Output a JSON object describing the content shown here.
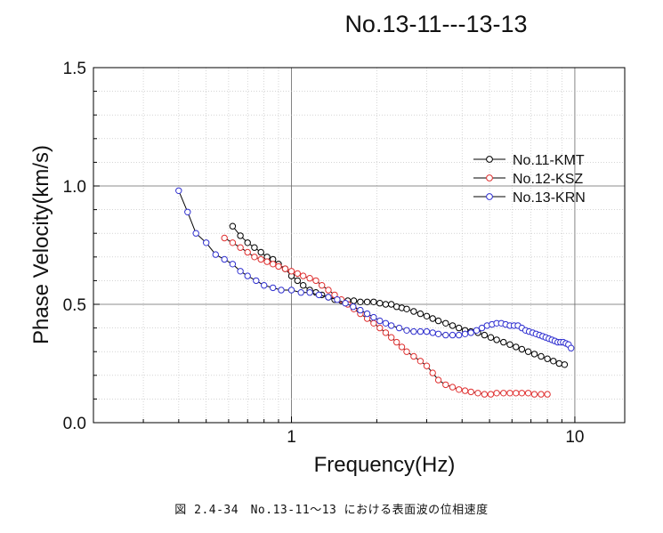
{
  "caption": "図 2.4-34　No.13-11～13 における表面波の位相速度",
  "chart_data": {
    "type": "scatter",
    "title": "No.13-11---13-13",
    "xlabel": "Frequency(Hz)",
    "ylabel": "Phase Velocity(km/s)",
    "xscale": "log",
    "xlim": [
      0.2,
      15
    ],
    "ylim": [
      0.0,
      1.5
    ],
    "x_ticks": [
      1,
      10
    ],
    "x_tick_labels": [
      "1",
      "10"
    ],
    "y_ticks": [
      0.0,
      0.5,
      1.0,
      1.5
    ],
    "y_tick_labels": [
      "0.0",
      "0.5",
      "1.0",
      "1.5"
    ],
    "grid": true,
    "legend_position": "top-right",
    "series": [
      {
        "name": "No.11-KMT",
        "color": "#000000",
        "x": [
          0.62,
          0.66,
          0.7,
          0.74,
          0.78,
          0.82,
          0.86,
          0.9,
          0.95,
          1.0,
          1.05,
          1.1,
          1.16,
          1.22,
          1.28,
          1.35,
          1.42,
          1.5,
          1.58,
          1.66,
          1.75,
          1.85,
          1.95,
          2.05,
          2.15,
          2.25,
          2.35,
          2.45,
          2.55,
          2.7,
          2.85,
          3.0,
          3.15,
          3.3,
          3.5,
          3.7,
          3.9,
          4.1,
          4.3,
          4.55,
          4.8,
          5.05,
          5.3,
          5.6,
          5.9,
          6.2,
          6.5,
          6.85,
          7.2,
          7.6,
          8.0,
          8.4,
          8.8,
          9.2
        ],
        "y": [
          0.83,
          0.79,
          0.76,
          0.74,
          0.72,
          0.7,
          0.69,
          0.67,
          0.65,
          0.62,
          0.6,
          0.58,
          0.56,
          0.55,
          0.54,
          0.53,
          0.52,
          0.515,
          0.515,
          0.515,
          0.51,
          0.51,
          0.51,
          0.505,
          0.5,
          0.5,
          0.49,
          0.485,
          0.48,
          0.47,
          0.46,
          0.45,
          0.44,
          0.43,
          0.42,
          0.41,
          0.4,
          0.39,
          0.385,
          0.38,
          0.37,
          0.36,
          0.35,
          0.34,
          0.33,
          0.32,
          0.31,
          0.3,
          0.29,
          0.28,
          0.27,
          0.26,
          0.25,
          0.245
        ]
      },
      {
        "name": "No.12-KSZ",
        "color": "#e03030",
        "x": [
          0.58,
          0.62,
          0.66,
          0.7,
          0.74,
          0.78,
          0.82,
          0.86,
          0.9,
          0.95,
          1.0,
          1.05,
          1.1,
          1.16,
          1.22,
          1.28,
          1.35,
          1.42,
          1.5,
          1.58,
          1.66,
          1.75,
          1.85,
          1.95,
          2.05,
          2.15,
          2.25,
          2.35,
          2.45,
          2.55,
          2.7,
          2.85,
          3.0,
          3.15,
          3.3,
          3.5,
          3.7,
          3.9,
          4.1,
          4.3,
          4.55,
          4.8,
          5.05,
          5.3,
          5.6,
          5.9,
          6.2,
          6.5,
          6.85,
          7.2,
          7.6,
          8.0
        ],
        "y": [
          0.78,
          0.76,
          0.74,
          0.72,
          0.7,
          0.69,
          0.68,
          0.67,
          0.66,
          0.65,
          0.64,
          0.63,
          0.62,
          0.61,
          0.6,
          0.58,
          0.56,
          0.54,
          0.52,
          0.5,
          0.48,
          0.46,
          0.44,
          0.42,
          0.4,
          0.38,
          0.36,
          0.34,
          0.32,
          0.3,
          0.28,
          0.26,
          0.24,
          0.21,
          0.18,
          0.16,
          0.15,
          0.14,
          0.135,
          0.13,
          0.125,
          0.12,
          0.12,
          0.125,
          0.125,
          0.125,
          0.125,
          0.125,
          0.125,
          0.12,
          0.12,
          0.12
        ]
      },
      {
        "name": "No.13-KRN",
        "color": "#3030d0",
        "x": [
          0.4,
          0.43,
          0.46,
          0.5,
          0.54,
          0.58,
          0.62,
          0.66,
          0.7,
          0.75,
          0.8,
          0.86,
          0.92,
          1.0,
          1.08,
          1.16,
          1.25,
          1.35,
          1.45,
          1.55,
          1.65,
          1.75,
          1.85,
          1.95,
          2.05,
          2.15,
          2.25,
          2.4,
          2.55,
          2.7,
          2.85,
          3.0,
          3.15,
          3.3,
          3.5,
          3.7,
          3.9,
          4.1,
          4.3,
          4.5,
          4.7,
          4.9,
          5.1,
          5.3,
          5.5,
          5.7,
          5.9,
          6.1,
          6.3,
          6.5,
          6.7,
          6.9,
          7.1,
          7.3,
          7.5,
          7.7,
          7.9,
          8.1,
          8.3,
          8.5,
          8.7,
          8.9,
          9.1,
          9.3,
          9.5,
          9.7
        ],
        "y": [
          0.98,
          0.89,
          0.8,
          0.76,
          0.71,
          0.69,
          0.67,
          0.64,
          0.62,
          0.6,
          0.58,
          0.57,
          0.56,
          0.56,
          0.55,
          0.55,
          0.54,
          0.53,
          0.52,
          0.505,
          0.49,
          0.475,
          0.46,
          0.445,
          0.43,
          0.42,
          0.41,
          0.4,
          0.39,
          0.385,
          0.385,
          0.385,
          0.38,
          0.375,
          0.37,
          0.37,
          0.37,
          0.375,
          0.38,
          0.39,
          0.4,
          0.41,
          0.415,
          0.42,
          0.42,
          0.415,
          0.41,
          0.41,
          0.41,
          0.4,
          0.39,
          0.385,
          0.38,
          0.375,
          0.37,
          0.365,
          0.36,
          0.355,
          0.35,
          0.345,
          0.34,
          0.34,
          0.34,
          0.335,
          0.33,
          0.315
        ]
      }
    ]
  }
}
